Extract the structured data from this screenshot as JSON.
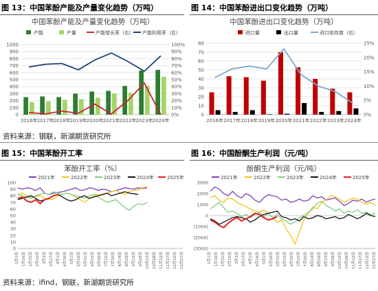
{
  "figures": [
    {
      "label": "图 13：中国苯酚产能及产量变化趋势（万吨）"
    },
    {
      "label": "图 14：中国苯酚进出口变化趋势（万吨）"
    },
    {
      "label": "图 15：中国苯酚开工率"
    },
    {
      "label": "图 16：中国酚酮生产利润（元/吨）"
    }
  ],
  "sources": {
    "top": "资料来源：钢联，新湖期货研究所",
    "bottom": "资料来源：ifind，钢联，新湖期货研究所"
  },
  "chart_data": [
    {
      "id": "capacity",
      "type": "bar",
      "title": "中国苯酚产能及产量变化趋势（万吨）",
      "categories": [
        "2016年",
        "2017年",
        "2018年",
        "2019年",
        "2020年",
        "2021年",
        "2022年",
        "2023年",
        "2024年"
      ],
      "series": [
        {
          "name": "产能",
          "kind": "bar",
          "axis": "left",
          "color": "#2e7d32",
          "values": [
            250,
            260,
            250,
            300,
            330,
            340,
            410,
            630,
            640
          ]
        },
        {
          "name": "产量",
          "kind": "bar",
          "axis": "left",
          "color": "#a5d36a",
          "values": [
            180,
            190,
            210,
            220,
            240,
            300,
            310,
            410,
            540
          ]
        },
        {
          "name": "产能增长率（右）",
          "kind": "line",
          "axis": "right",
          "color": "#c62828",
          "values": [
            3,
            1,
            5,
            2,
            15,
            1,
            20,
            45,
            0
          ]
        },
        {
          "name": "产能利用率（右）",
          "kind": "line",
          "axis": "right",
          "color": "#1f3f7a",
          "values": [
            68,
            72,
            73,
            64,
            78,
            88,
            76,
            62,
            84
          ]
        }
      ],
      "ylim": [
        0,
        1000
      ],
      "yticks": [
        0,
        100,
        200,
        300,
        400,
        500,
        600,
        700,
        800,
        900,
        1000
      ],
      "y2lim": [
        0,
        100
      ],
      "y2ticks": [
        "0%",
        "10%",
        "20%",
        "30%",
        "40%",
        "50%",
        "60%",
        "70%",
        "80%",
        "90%",
        "100%"
      ],
      "legend": "top",
      "grid": true
    },
    {
      "id": "trade",
      "type": "bar",
      "title": "中国苯酚进出口变化趋势（万吨）",
      "categories": [
        "2016年",
        "2017年",
        "2018年",
        "2019年",
        "2020年",
        "2021年",
        "2022年",
        "2023年",
        "2024年"
      ],
      "series": [
        {
          "name": "进口量",
          "kind": "bar",
          "axis": "left",
          "color": "#c00000",
          "values": [
            25,
            43,
            42,
            38,
            70,
            53,
            40,
            29,
            25
          ]
        },
        {
          "name": "出口量",
          "kind": "bar",
          "axis": "left",
          "color": "#000000",
          "values": [
            5,
            3,
            5,
            0.5,
            1,
            13,
            3,
            4,
            7
          ]
        },
        {
          "name": "进口依存度（右）",
          "kind": "line",
          "axis": "right",
          "color": "#7fa7c9",
          "values": [
            13,
            16,
            17,
            16,
            23,
            14,
            10,
            8,
            4
          ]
        }
      ],
      "ylim": [
        0,
        80
      ],
      "yticks": [
        0,
        10,
        20,
        30,
        40,
        50,
        60,
        70,
        80
      ],
      "y2lim": [
        0,
        25
      ],
      "y2ticks": [
        "0%",
        "5%",
        "10%",
        "15%",
        "20%",
        "25%"
      ],
      "legend": "top",
      "grid": true
    },
    {
      "id": "oprate",
      "type": "line",
      "title": "苯酚开工率（%）",
      "xlabels": [
        "1月1日",
        "1月16日",
        "1月31日",
        "2月15日",
        "3月2日",
        "3月17日",
        "4月1日",
        "4月16日",
        "5月1日",
        "5月16日",
        "5月31日",
        "6月15日",
        "6月30日",
        "7月15日",
        "7月30日",
        "8月14日",
        "8月29日",
        "9月13日",
        "9月28日",
        "10月13日",
        "10月28日",
        "11月12日",
        "11月27日",
        "12月12日",
        "12月27日"
      ],
      "ylim": [
        0,
        100
      ],
      "yticks": [
        0,
        10,
        20,
        30,
        40,
        50,
        60,
        70,
        80,
        90,
        100
      ],
      "series": [
        {
          "name": "2021年",
          "color": "#7b3fb0",
          "values": [
            92,
            90,
            92,
            91,
            88,
            92,
            84,
            82,
            84,
            85,
            86,
            88,
            90,
            92,
            88,
            89,
            92,
            91,
            88,
            90,
            89,
            86,
            88,
            90,
            92,
            91,
            90,
            92,
            91,
            92
          ]
        },
        {
          "name": "2022年",
          "color": "#f0c419",
          "values": [
            82,
            84,
            80,
            78,
            79,
            80,
            76,
            74,
            75,
            80,
            82,
            84,
            82,
            78,
            74,
            70,
            76,
            80,
            82,
            80,
            84,
            86,
            88,
            84,
            82,
            86,
            88,
            89,
            92,
            94
          ]
        },
        {
          "name": "2023年",
          "color": "#7ecb7e",
          "values": [
            82,
            80,
            78,
            76,
            80,
            82,
            84,
            82,
            86,
            84,
            82,
            84,
            82,
            80,
            78,
            76,
            80,
            82,
            78,
            74,
            70,
            72,
            74,
            68,
            62,
            58,
            64,
            68,
            66,
            70
          ]
        },
        {
          "name": "2024年",
          "color": "#111111",
          "values": [
            74,
            76,
            78,
            80,
            76,
            72,
            74,
            76,
            80,
            82,
            78,
            74,
            72,
            74,
            78,
            80,
            76,
            78,
            80,
            82,
            84,
            80,
            82,
            84,
            86,
            84,
            83,
            82
          ]
        },
        {
          "name": "2025年",
          "color": "#e02020",
          "values": [
            76,
            78,
            72,
            70,
            74,
            68,
            74,
            76,
            80,
            82
          ]
        }
      ],
      "legend": "top"
    },
    {
      "id": "profit",
      "type": "line",
      "title": "酚酮生产利润（元/吨）",
      "xlabels": [
        "1月1日",
        "1月16日",
        "1月31日",
        "2月15日",
        "3月2日",
        "3月17日",
        "4月1日",
        "4月16日",
        "5月1日",
        "5月16日",
        "5月31日",
        "6月15日",
        "6月30日",
        "7月15日",
        "7月30日",
        "8月14日",
        "8月29日",
        "9月13日",
        "9月28日",
        "10月13日",
        "10月28日",
        "11月12日",
        "11月27日",
        "12月12日",
        "12月27日"
      ],
      "ylim": [
        -3000,
        3000
      ],
      "yticks": [
        "(3000)",
        "(2000)",
        "(1000)",
        "0",
        "1000",
        "2000",
        "3000"
      ],
      "series": [
        {
          "name": "2021年",
          "color": "#7b3fb0",
          "values": [
            2200,
            2600,
            2400,
            2000,
            1800,
            2200,
            1800,
            1600,
            2000,
            1800,
            1400,
            1200,
            1600,
            1900,
            1800,
            1700,
            1400,
            1500,
            1200,
            1300,
            1500,
            1300,
            1400,
            1800,
            1600,
            1700,
            1400,
            1500,
            1600,
            1300,
            900,
            1100,
            1400,
            1300,
            1500,
            1200,
            1400,
            1500
          ]
        },
        {
          "name": "2022年",
          "color": "#f0c419",
          "values": [
            1600,
            1800,
            1400,
            1200,
            1600,
            1500,
            1200,
            1000,
            800,
            600,
            400,
            300,
            500,
            200,
            -200,
            -600,
            -400,
            -1200,
            -1800,
            -2600,
            -1500,
            -400,
            200,
            800,
            600,
            1200,
            1400,
            1800,
            1700,
            1500,
            1200,
            1400,
            1600,
            1500,
            1200,
            1000,
            1200,
            900
          ]
        },
        {
          "name": "2023年",
          "color": "#7ecb7e",
          "values": [
            600,
            900,
            1200,
            700,
            300,
            400,
            200,
            -100,
            100,
            -200,
            100,
            300,
            -100,
            200,
            -200,
            100,
            -300,
            -500,
            -800,
            -600,
            -200,
            0,
            300,
            600,
            1100,
            1300,
            900,
            700,
            400,
            600,
            200,
            400,
            300,
            500,
            200,
            300,
            100,
            200
          ]
        },
        {
          "name": "2024年",
          "color": "#111111",
          "values": [
            -300,
            -500,
            -800,
            -600,
            -400,
            -200,
            -100,
            -200,
            -300,
            -600,
            -400,
            -100,
            100,
            200,
            300,
            400,
            -100,
            -200,
            -400,
            -300,
            -500,
            -100,
            -300,
            -200,
            0,
            -100,
            -300,
            -200,
            -100,
            -300,
            -200,
            100,
            -100,
            -300,
            -100,
            200,
            0,
            -100
          ]
        },
        {
          "name": "2025年",
          "color": "#e02020",
          "values": [
            -400,
            -600,
            -900,
            -1100,
            -700,
            -400,
            -200,
            -500,
            -300,
            -100,
            200,
            100,
            -200,
            -400,
            -300,
            -100
          ]
        }
      ],
      "legend": "top"
    }
  ]
}
